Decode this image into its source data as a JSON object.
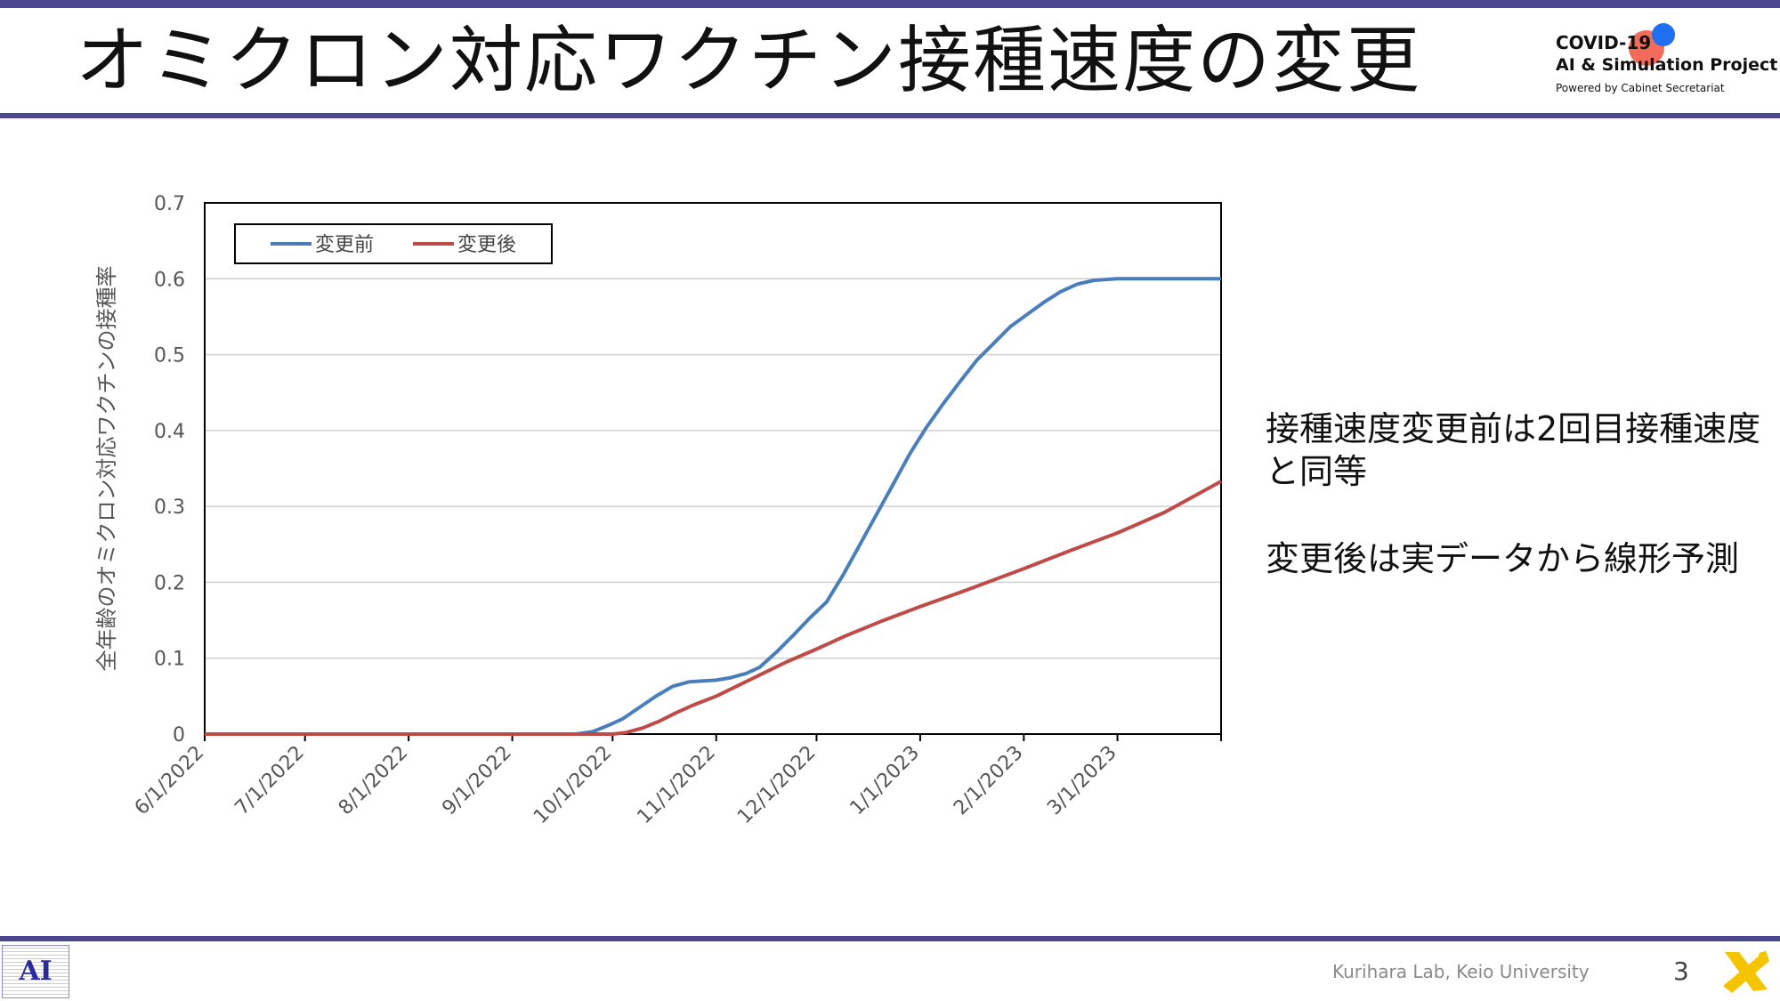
{
  "header": {
    "title": "オミクロン対応ワクチン接種速度の変更",
    "logo": {
      "line1": "COVID-19",
      "line2": "AI & Simulation Project",
      "line3": "Powered by Cabinet Secretariat"
    }
  },
  "side_text": {
    "para1": "接種速度変更前は2回目接種速度と同等",
    "para2": "変更後は実データから線形予測"
  },
  "footer": {
    "lab": "Kurihara Lab, Keio University",
    "page_number": "3",
    "left_logo_text": "AI"
  },
  "colors": {
    "accent_bar": "#4b4690",
    "series_before": "#4a7ebb",
    "series_after": "#be4b48"
  },
  "chart_data": {
    "type": "line",
    "title": "",
    "xlabel": "",
    "ylabel": "全年齢のオミクロン対応ワクチンの接種率",
    "ylim": [
      0,
      0.7
    ],
    "yticks": [
      "0",
      "0.1",
      "0.2",
      "0.3",
      "0.4",
      "0.5",
      "0.6",
      "0.7"
    ],
    "xlim": [
      "2022-06-01",
      "2023-04-01"
    ],
    "xtick_dates": [
      "2022-06-01",
      "2022-07-01",
      "2022-08-01",
      "2022-09-01",
      "2022-10-01",
      "2022-11-01",
      "2022-12-01",
      "2023-01-01",
      "2023-02-01",
      "2023-03-01"
    ],
    "xtick_labels": [
      "6/1/2022",
      "7/1/2022",
      "8/1/2022",
      "9/1/2022",
      "10/1/2022",
      "11/1/2022",
      "12/1/2022",
      "1/1/2023",
      "2/1/2023",
      "3/1/2023"
    ],
    "grid": "horizontal",
    "legend": "top-left",
    "series": [
      {
        "name": "変更前",
        "color": "#4a7ebb",
        "points": [
          [
            "2022-06-01",
            0
          ],
          [
            "2022-09-20",
            0
          ],
          [
            "2022-09-25",
            0.003
          ],
          [
            "2022-09-30",
            0.012
          ],
          [
            "2022-10-04",
            0.02
          ],
          [
            "2022-10-09",
            0.035
          ],
          [
            "2022-10-14",
            0.05
          ],
          [
            "2022-10-19",
            0.063
          ],
          [
            "2022-10-24",
            0.069
          ],
          [
            "2022-11-01",
            0.071
          ],
          [
            "2022-11-05",
            0.074
          ],
          [
            "2022-11-10",
            0.08
          ],
          [
            "2022-11-14",
            0.088
          ],
          [
            "2022-11-19",
            0.108
          ],
          [
            "2022-11-24",
            0.13
          ],
          [
            "2022-11-29",
            0.153
          ],
          [
            "2022-12-04",
            0.174
          ],
          [
            "2022-12-09",
            0.21
          ],
          [
            "2022-12-14",
            0.25
          ],
          [
            "2022-12-19",
            0.29
          ],
          [
            "2022-12-24",
            0.33
          ],
          [
            "2022-12-29",
            0.37
          ],
          [
            "2023-01-03",
            0.405
          ],
          [
            "2023-01-08",
            0.436
          ],
          [
            "2023-01-13",
            0.465
          ],
          [
            "2023-01-18",
            0.493
          ],
          [
            "2023-01-23",
            0.515
          ],
          [
            "2023-01-28",
            0.537
          ],
          [
            "2023-02-02",
            0.553
          ],
          [
            "2023-02-07",
            0.569
          ],
          [
            "2023-02-12",
            0.583
          ],
          [
            "2023-02-17",
            0.593
          ],
          [
            "2023-02-22",
            0.598
          ],
          [
            "2023-03-01",
            0.6
          ],
          [
            "2023-04-01",
            0.6
          ]
        ]
      },
      {
        "name": "変更後",
        "color": "#be4b48",
        "points": [
          [
            "2022-06-01",
            0
          ],
          [
            "2022-10-01",
            0
          ],
          [
            "2022-10-05",
            0.002
          ],
          [
            "2022-10-10",
            0.008
          ],
          [
            "2022-10-15",
            0.017
          ],
          [
            "2022-10-20",
            0.028
          ],
          [
            "2022-10-25",
            0.038
          ],
          [
            "2022-11-01",
            0.05
          ],
          [
            "2022-11-08",
            0.065
          ],
          [
            "2022-11-15",
            0.08
          ],
          [
            "2022-11-22",
            0.095
          ],
          [
            "2022-12-01",
            0.112
          ],
          [
            "2022-12-10",
            0.13
          ],
          [
            "2022-12-20",
            0.148
          ],
          [
            "2023-01-01",
            0.168
          ],
          [
            "2023-01-15",
            0.19
          ],
          [
            "2023-02-01",
            0.218
          ],
          [
            "2023-02-15",
            0.242
          ],
          [
            "2023-03-01",
            0.265
          ],
          [
            "2023-03-15",
            0.292
          ],
          [
            "2023-04-01",
            0.333
          ]
        ]
      }
    ]
  }
}
